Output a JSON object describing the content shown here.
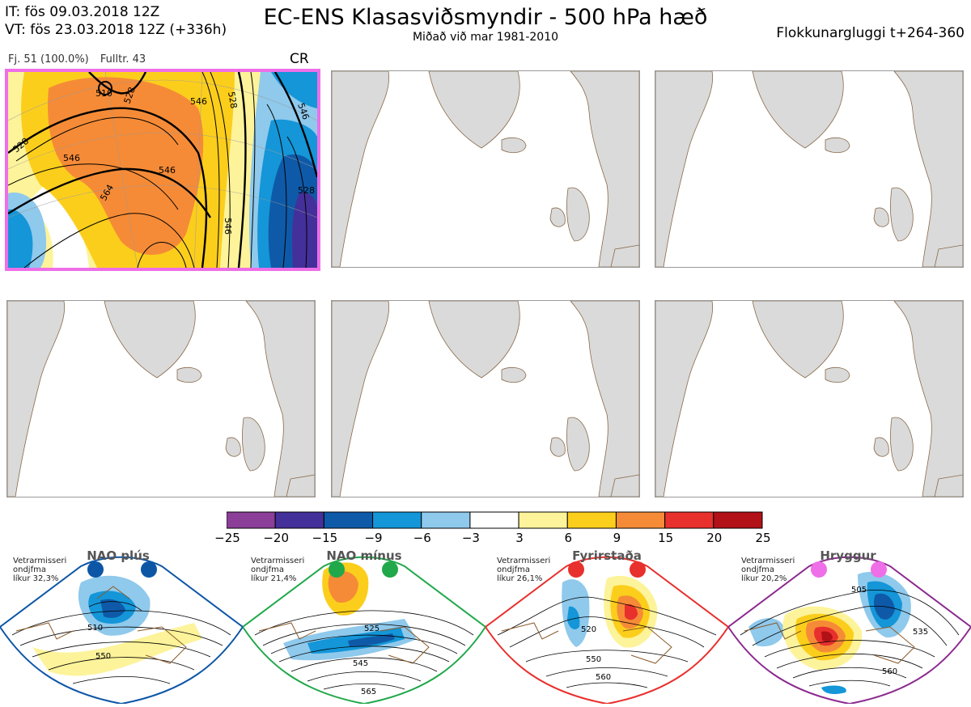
{
  "header": {
    "it": "IT: fös 09.03.2018 12Z",
    "vt": "VT: fös 23.03.2018 12Z  (+336h)",
    "title": "EC-ENS Klasasviðsmyndir - 500 hPa hæð",
    "subtitle": "Miðað við mar 1981-2010",
    "window": "Flokkunargluggi t+264-360"
  },
  "panel1": {
    "members": "Fj. 51 (100.0%)",
    "representative": "Fulltr. 43",
    "cluster_code": "CR",
    "contour_labels": [
      "510",
      "528",
      "528",
      "528",
      "546",
      "546",
      "546",
      "546",
      "564",
      "546",
      "528"
    ]
  },
  "empty_panels": [
    "panel-2",
    "panel-3",
    "panel-4",
    "panel-5",
    "panel-6"
  ],
  "colorbar": {
    "ticks": [
      "−25",
      "−20",
      "−15",
      "−9",
      "−6",
      "−3",
      "3",
      "6",
      "9",
      "15",
      "20",
      "25"
    ],
    "colors": [
      "#8b3f98",
      "#44309a",
      "#0f5aa8",
      "#1496d8",
      "#8fc9ec",
      "#ffffff",
      "#fdf39a",
      "#fcce1c",
      "#f58b37",
      "#e8302d",
      "#b11117"
    ]
  },
  "regimes": [
    {
      "name": "NAO plús",
      "note": "Vetrarmisseri\nondjfma\nlíkur 32,3%",
      "color": "#0d56a6",
      "labels": [
        "510",
        "550"
      ]
    },
    {
      "name": "NAO mínus",
      "note": "Vetrarmisseri\nondjfma\nlíkur 21,4%",
      "color": "#20a84a",
      "labels": [
        "525",
        "545",
        "565"
      ]
    },
    {
      "name": "Fyrirstaða",
      "note": "Vetrarmisseri\nondjfma\nlíkur 26,1%",
      "color": "#e8302d",
      "labels": [
        "520",
        "550",
        "560"
      ]
    },
    {
      "name": "Hryggur",
      "note": "Vetrarmisseri\nondjfma\nlíkur 20,2%",
      "color": "#8b2a8f",
      "labels": [
        "505",
        "535",
        "560"
      ]
    }
  ]
}
